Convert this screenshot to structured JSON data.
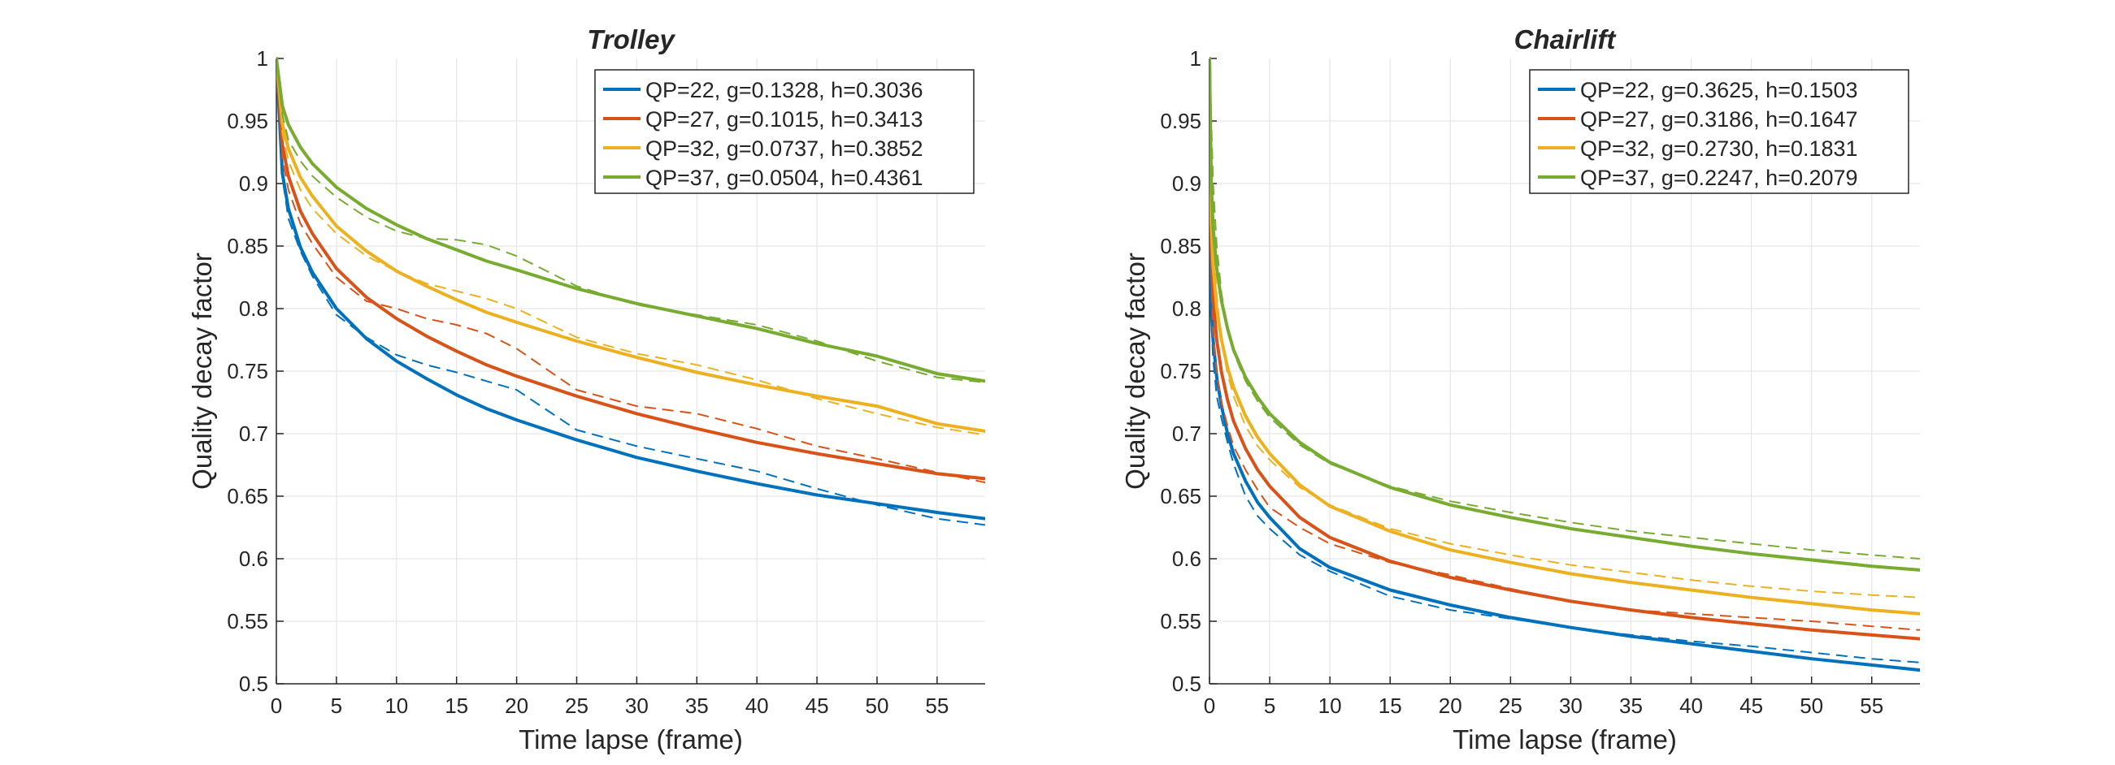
{
  "chart_data": [
    {
      "type": "line",
      "title": "Trolley",
      "xlabel": "Time lapse (frame)",
      "ylabel": "Quality decay factor",
      "xlim": [
        0,
        59
      ],
      "ylim": [
        0.5,
        1
      ],
      "xticks": [
        0,
        5,
        10,
        15,
        20,
        25,
        30,
        35,
        40,
        45,
        50,
        55
      ],
      "yticks": [
        0.5,
        0.55,
        0.6,
        0.65,
        0.7,
        0.75,
        0.8,
        0.85,
        0.9,
        0.95,
        1
      ],
      "ytick_labels": [
        "0.5",
        "0.55",
        "0.6",
        "0.65",
        "0.7",
        "0.75",
        "0.8",
        "0.85",
        "0.9",
        "0.95",
        "1"
      ],
      "grid": true,
      "legend_position": "top-right",
      "x": [
        0,
        0.5,
        1,
        2,
        3,
        5,
        7.5,
        10,
        12.5,
        15,
        17.5,
        20,
        25,
        30,
        35,
        40,
        45,
        50,
        55,
        59
      ],
      "series": [
        {
          "name": "QP=22, g=0.1328, h=0.3036",
          "color": "#0072BD",
          "values": [
            1,
            0.908,
            0.88,
            0.849,
            0.829,
            0.8,
            0.776,
            0.758,
            0.744,
            0.731,
            0.72,
            0.711,
            0.695,
            0.681,
            0.67,
            0.66,
            0.651,
            0.644,
            0.637,
            0.632
          ],
          "observed": [
            1,
            0.905,
            0.872,
            0.846,
            0.826,
            0.795,
            0.777,
            0.763,
            0.755,
            0.749,
            0.742,
            0.735,
            0.703,
            0.69,
            0.68,
            0.67,
            0.656,
            0.643,
            0.632,
            0.627
          ]
        },
        {
          "name": "QP=27, g=0.1015, h=0.3413",
          "color": "#D95319",
          "values": [
            1,
            0.931,
            0.906,
            0.878,
            0.86,
            0.832,
            0.809,
            0.792,
            0.778,
            0.766,
            0.755,
            0.746,
            0.73,
            0.716,
            0.704,
            0.693,
            0.684,
            0.676,
            0.668,
            0.664
          ],
          "observed": [
            1,
            0.92,
            0.895,
            0.868,
            0.852,
            0.825,
            0.806,
            0.8,
            0.792,
            0.787,
            0.78,
            0.768,
            0.735,
            0.722,
            0.716,
            0.704,
            0.69,
            0.68,
            0.669,
            0.661
          ]
        },
        {
          "name": "QP=32, g=0.0737, h=0.3852",
          "color": "#EDB120",
          "values": [
            1,
            0.948,
            0.928,
            0.905,
            0.89,
            0.866,
            0.846,
            0.83,
            0.818,
            0.807,
            0.797,
            0.789,
            0.774,
            0.761,
            0.749,
            0.739,
            0.73,
            0.722,
            0.708,
            0.702
          ],
          "observed": [
            1,
            0.94,
            0.918,
            0.895,
            0.88,
            0.86,
            0.842,
            0.83,
            0.82,
            0.814,
            0.808,
            0.8,
            0.777,
            0.764,
            0.755,
            0.743,
            0.728,
            0.716,
            0.705,
            0.699
          ]
        },
        {
          "name": "QP=37, g=0.0504, h=0.4361",
          "color": "#77AC30",
          "values": [
            1,
            0.962,
            0.947,
            0.929,
            0.916,
            0.897,
            0.88,
            0.867,
            0.856,
            0.847,
            0.838,
            0.831,
            0.816,
            0.804,
            0.794,
            0.784,
            0.772,
            0.762,
            0.748,
            0.742
          ],
          "observed": [
            1,
            0.955,
            0.935,
            0.918,
            0.906,
            0.889,
            0.873,
            0.862,
            0.856,
            0.855,
            0.851,
            0.842,
            0.818,
            0.803,
            0.795,
            0.787,
            0.774,
            0.758,
            0.745,
            0.741
          ]
        }
      ]
    },
    {
      "type": "line",
      "title": "Chairlift",
      "xlabel": "Time lapse (frame)",
      "ylabel": "Quality decay factor",
      "xlim": [
        0,
        59
      ],
      "ylim": [
        0.5,
        1
      ],
      "xticks": [
        0,
        5,
        10,
        15,
        20,
        25,
        30,
        35,
        40,
        45,
        50,
        55
      ],
      "yticks": [
        0.5,
        0.55,
        0.6,
        0.65,
        0.7,
        0.75,
        0.8,
        0.85,
        0.9,
        0.95,
        1
      ],
      "ytick_labels": [
        "0.5",
        "0.55",
        "0.6",
        "0.65",
        "0.7",
        "0.75",
        "0.8",
        "0.85",
        "0.9",
        "0.95",
        "1"
      ],
      "grid": true,
      "legend_position": "top-right",
      "x": [
        0,
        0.15,
        0.3,
        0.6,
        1,
        1.5,
        2,
        3,
        4,
        5,
        7.5,
        10,
        15,
        20,
        25,
        30,
        35,
        40,
        45,
        50,
        55,
        59
      ],
      "series": [
        {
          "name": "QP=22, g=0.3625, h=0.1503",
          "color": "#0072BD",
          "values": [
            1,
            0.8,
            0.775,
            0.745,
            0.722,
            0.7,
            0.684,
            0.662,
            0.645,
            0.633,
            0.608,
            0.593,
            0.575,
            0.563,
            0.553,
            0.545,
            0.538,
            0.532,
            0.526,
            0.52,
            0.515,
            0.511
          ],
          "observed": [
            1,
            0.79,
            0.76,
            0.73,
            0.712,
            0.693,
            0.676,
            0.65,
            0.634,
            0.624,
            0.603,
            0.59,
            0.57,
            0.559,
            0.552,
            0.545,
            0.539,
            0.534,
            0.53,
            0.525,
            0.52,
            0.517
          ]
        },
        {
          "name": "QP=27, g=0.3186, h=0.1647",
          "color": "#D95319",
          "values": [
            1,
            0.85,
            0.808,
            0.775,
            0.749,
            0.727,
            0.71,
            0.688,
            0.671,
            0.658,
            0.633,
            0.617,
            0.598,
            0.585,
            0.575,
            0.566,
            0.559,
            0.553,
            0.548,
            0.543,
            0.539,
            0.536
          ],
          "observed": [
            1,
            0.83,
            0.78,
            0.748,
            0.725,
            0.706,
            0.69,
            0.671,
            0.655,
            0.641,
            0.625,
            0.612,
            0.597,
            0.587,
            0.576,
            0.566,
            0.559,
            0.556,
            0.553,
            0.55,
            0.546,
            0.543
          ]
        },
        {
          "name": "QP=32, g=0.2730, h=0.1831",
          "color": "#EDB120",
          "values": [
            1,
            0.87,
            0.835,
            0.8,
            0.775,
            0.753,
            0.737,
            0.714,
            0.697,
            0.684,
            0.659,
            0.642,
            0.622,
            0.607,
            0.597,
            0.588,
            0.581,
            0.575,
            0.569,
            0.564,
            0.559,
            0.556
          ],
          "observed": [
            1,
            0.92,
            0.865,
            0.81,
            0.774,
            0.748,
            0.73,
            0.706,
            0.69,
            0.679,
            0.657,
            0.643,
            0.624,
            0.612,
            0.603,
            0.595,
            0.589,
            0.583,
            0.578,
            0.574,
            0.571,
            0.569
          ]
        },
        {
          "name": "QP=37, g=0.2247, h=0.2079",
          "color": "#77AC30",
          "values": [
            1,
            0.9,
            0.865,
            0.832,
            0.806,
            0.784,
            0.767,
            0.745,
            0.729,
            0.716,
            0.693,
            0.677,
            0.657,
            0.643,
            0.633,
            0.624,
            0.617,
            0.61,
            0.604,
            0.599,
            0.594,
            0.591
          ],
          "observed": [
            1,
            0.95,
            0.9,
            0.85,
            0.812,
            0.784,
            0.765,
            0.742,
            0.726,
            0.713,
            0.691,
            0.676,
            0.658,
            0.646,
            0.637,
            0.629,
            0.622,
            0.617,
            0.612,
            0.607,
            0.603,
            0.6
          ]
        }
      ]
    }
  ]
}
